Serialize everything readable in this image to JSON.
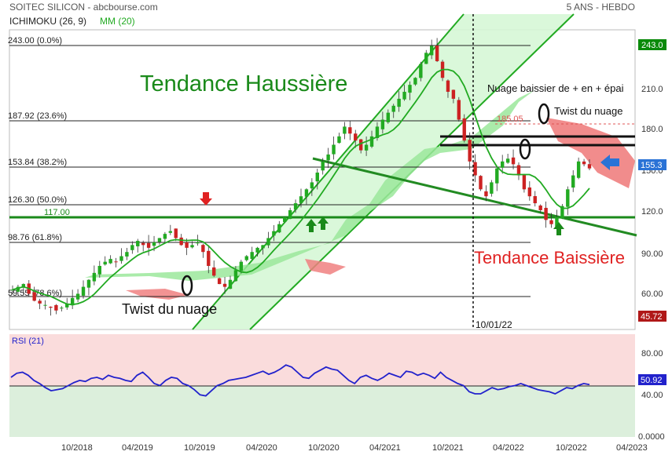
{
  "header": {
    "title": "SOITEC SILICON - abcbourse.com",
    "period": "5 ANS - HEBDO",
    "indicator1": "ICHIMOKU (26, 9)",
    "indicator2": "MM (20)"
  },
  "colors": {
    "bull_candle": "#22aa22",
    "bear_candle": "#cc2222",
    "ma": "#22aa22",
    "cloud_bull": "#9be89b",
    "cloud_bear": "#f08080",
    "rsi_line": "#2222cc",
    "rsi_top_zone": "#fadcdc",
    "rsi_bottom_zone": "#dcefdc",
    "channel_fill": "#d6f7d6",
    "trend_up": "#22aa22",
    "trend_down": "#228b22"
  },
  "annotations": {
    "trend_up": "Tendance Haussière",
    "trend_down": "Tendance Baissière",
    "twist1": "Twist du nuage",
    "twist2": "Twist du nuage",
    "cloud_note": "Nuage baissier de + en + épai",
    "date_marker": "10/01/22"
  },
  "chart_data": [
    {
      "type": "candlestick",
      "title": "SOITEC SILICON",
      "ylim": [
        45,
        250
      ],
      "y_ticks": [
        60,
        90,
        120,
        150,
        180,
        210,
        243
      ],
      "y_tick_labels": [
        "60.00",
        "90.00",
        "120.0",
        "150.0",
        "180.0",
        "210.0",
        "243.0"
      ],
      "x_tick_labels": [
        "10/2018",
        "04/2019",
        "10/2019",
        "04/2020",
        "10/2020",
        "04/2021",
        "10/2021",
        "04/2022",
        "10/2022",
        "04/2023"
      ],
      "fib_levels": [
        {
          "label": "243.00  (0.0%)",
          "value": 243.0
        },
        {
          "label": "187.92  (23.6%)",
          "value": 187.92
        },
        {
          "label": "153.84  (38.2%)",
          "value": 153.84
        },
        {
          "label": "126.30  (50.0%)",
          "value": 126.3
        },
        {
          "label": "98.76  (61.8%)",
          "value": 98.76
        },
        {
          "label": "59.55  (78.6%)",
          "value": 59.55
        }
      ],
      "support_level": {
        "label": "117.00",
        "value": 117.0
      },
      "resistance_level": {
        "label": "185.05",
        "value": 185.05
      },
      "last_price_label": "155.3",
      "low_label": "45.72",
      "close_series": [
        68,
        70,
        72,
        65,
        60,
        58,
        57,
        55,
        53,
        55,
        58,
        62,
        65,
        70,
        75,
        80,
        85,
        88,
        90,
        88,
        92,
        95,
        100,
        103,
        100,
        98,
        102,
        105,
        108,
        110,
        105,
        100,
        98,
        100,
        102,
        95,
        85,
        78,
        72,
        70,
        75,
        82,
        88,
        92,
        95,
        98,
        100,
        105,
        110,
        115,
        120,
        125,
        130,
        135,
        140,
        145,
        152,
        160,
        165,
        172,
        178,
        185,
        180,
        175,
        168,
        172,
        178,
        185,
        190,
        195,
        200,
        205,
        210,
        215,
        220,
        230,
        238,
        243,
        232,
        220,
        210,
        205,
        190,
        175,
        160,
        150,
        140,
        135,
        145,
        155,
        160,
        162,
        158,
        150,
        140,
        135,
        130,
        125,
        118,
        115,
        120,
        128,
        140,
        150,
        160,
        158,
        155
      ]
    },
    {
      "type": "line",
      "title": "RSI (21)",
      "ylim": [
        0,
        100
      ],
      "y_ticks": [
        0,
        40,
        80
      ],
      "y_tick_labels": [
        "0.0000",
        "40.00",
        "80.00"
      ],
      "midline": 50,
      "last_value_label": "50.92",
      "values": [
        58,
        62,
        63,
        60,
        55,
        52,
        48,
        45,
        46,
        47,
        50,
        53,
        55,
        54,
        57,
        58,
        56,
        60,
        58,
        57,
        55,
        54,
        60,
        63,
        58,
        52,
        50,
        55,
        58,
        57,
        52,
        50,
        46,
        41,
        40,
        45,
        50,
        52,
        55,
        56,
        57,
        58,
        60,
        62,
        64,
        61,
        63,
        66,
        70,
        68,
        63,
        58,
        57,
        62,
        65,
        68,
        66,
        65,
        60,
        55,
        52,
        58,
        60,
        57,
        55,
        58,
        62,
        60,
        58,
        64,
        63,
        60,
        62,
        60,
        57,
        63,
        58,
        55,
        52,
        50,
        44,
        42,
        42,
        45,
        48,
        46,
        47,
        49,
        50,
        52,
        50,
        48,
        46,
        45,
        44,
        42,
        45,
        48,
        47,
        50,
        52,
        51
      ]
    }
  ]
}
